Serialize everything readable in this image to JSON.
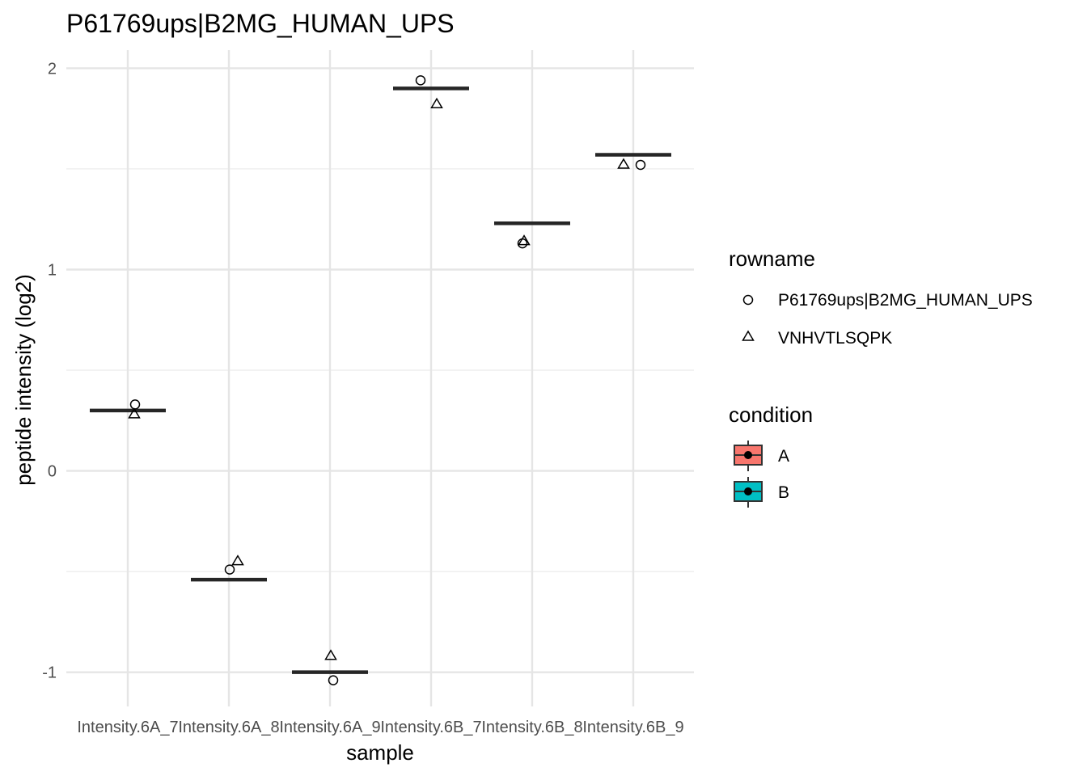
{
  "chart_data": {
    "type": "scatter",
    "title": "P61769ups|B2MG_HUMAN_UPS",
    "xlabel": "sample",
    "ylabel": "peptide intensity (log2)",
    "categories": [
      "Intensity.6A_7",
      "Intensity.6A_8",
      "Intensity.6A_9",
      "Intensity.6B_7",
      "Intensity.6B_8",
      "Intensity.6B_9"
    ],
    "ylim": [
      -1.17,
      2.09
    ],
    "yticks": [
      -1,
      0,
      1,
      2
    ],
    "ytick_labels": [
      "-1",
      "0",
      "1",
      "2"
    ],
    "grid": true,
    "legend_position": "right",
    "medians": [
      0.3,
      -0.54,
      -1.0,
      1.9,
      1.23,
      1.57
    ],
    "series": [
      {
        "name": "P61769ups|B2MG_HUMAN_UPS",
        "shape": "circle",
        "points": [
          {
            "x": "Intensity.6A_7",
            "y": 0.33
          },
          {
            "x": "Intensity.6A_8",
            "y": -0.49
          },
          {
            "x": "Intensity.6A_9",
            "y": -1.04
          },
          {
            "x": "Intensity.6B_7",
            "y": 1.94
          },
          {
            "x": "Intensity.6B_8",
            "y": 1.13
          },
          {
            "x": "Intensity.6B_9",
            "y": 1.52
          }
        ]
      },
      {
        "name": "VNHVTLSQPK",
        "shape": "triangle",
        "points": [
          {
            "x": "Intensity.6A_7",
            "y": 0.28
          },
          {
            "x": "Intensity.6A_8",
            "y": -0.45
          },
          {
            "x": "Intensity.6A_9",
            "y": -0.92
          },
          {
            "x": "Intensity.6B_7",
            "y": 1.82
          },
          {
            "x": "Intensity.6B_8",
            "y": 1.14
          },
          {
            "x": "Intensity.6B_9",
            "y": 1.52
          }
        ]
      }
    ],
    "legends": {
      "shape_title": "rowname",
      "shape_items": [
        "P61769ups|B2MG_HUMAN_UPS",
        "VNHVTLSQPK"
      ],
      "fill_title": "condition",
      "fill_items": [
        {
          "label": "A",
          "color": "#F8766D"
        },
        {
          "label": "B",
          "color": "#00BFC4"
        }
      ]
    }
  }
}
